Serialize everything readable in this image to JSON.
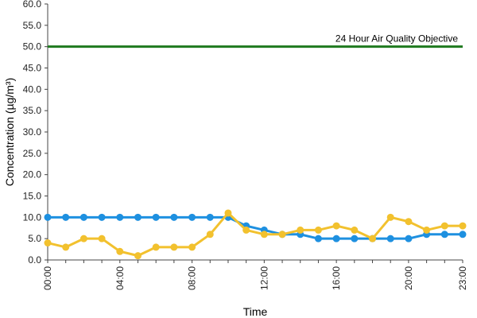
{
  "chart_data": {
    "type": "line",
    "xlabel": "Time",
    "ylabel": "Concentration (µg/m³)",
    "ylim": [
      0,
      60
    ],
    "yticks": [
      "0.0",
      "5.0",
      "10.0",
      "15.0",
      "20.0",
      "25.0",
      "30.0",
      "35.0",
      "40.0",
      "45.0",
      "50.0",
      "55.0",
      "60.0"
    ],
    "xticks": [
      {
        "hour": 0,
        "label": "00:00"
      },
      {
        "hour": 4,
        "label": "04:00"
      },
      {
        "hour": 8,
        "label": "08:00"
      },
      {
        "hour": 12,
        "label": "12:00"
      },
      {
        "hour": 16,
        "label": "16:00"
      },
      {
        "hour": 20,
        "label": "20:00"
      },
      {
        "hour": 23,
        "label": "23:00"
      }
    ],
    "xlim": [
      0,
      23
    ],
    "grid": false,
    "objective": {
      "label": "24 Hour Air Quality Objective",
      "value": 50,
      "color": "#1f7a1f"
    },
    "series": [
      {
        "color": "#1e90e0",
        "marker_color": "#1e90e0",
        "x": [
          0,
          1,
          2,
          3,
          4,
          5,
          6,
          7,
          8,
          9,
          10,
          11,
          12,
          13,
          14,
          15,
          16,
          17,
          18,
          19,
          20,
          21,
          22,
          23
        ],
        "values": [
          10,
          10,
          10,
          10,
          10,
          10,
          10,
          10,
          10,
          10,
          10,
          8,
          7,
          6,
          6,
          5,
          5,
          5,
          5,
          5,
          5,
          6,
          6,
          6
        ]
      },
      {
        "color": "#f2c12e",
        "marker_color": "#f2c12e",
        "x": [
          0,
          1,
          2,
          3,
          4,
          5,
          6,
          7,
          8,
          9,
          10,
          11,
          12,
          13,
          14,
          15,
          16,
          17,
          18,
          19,
          20,
          21,
          22,
          23
        ],
        "values": [
          4,
          3,
          5,
          5,
          2,
          1,
          3,
          3,
          3,
          6,
          11,
          7,
          6,
          6,
          7,
          7,
          8,
          7,
          5,
          10,
          9,
          7,
          8,
          8
        ]
      }
    ]
  }
}
